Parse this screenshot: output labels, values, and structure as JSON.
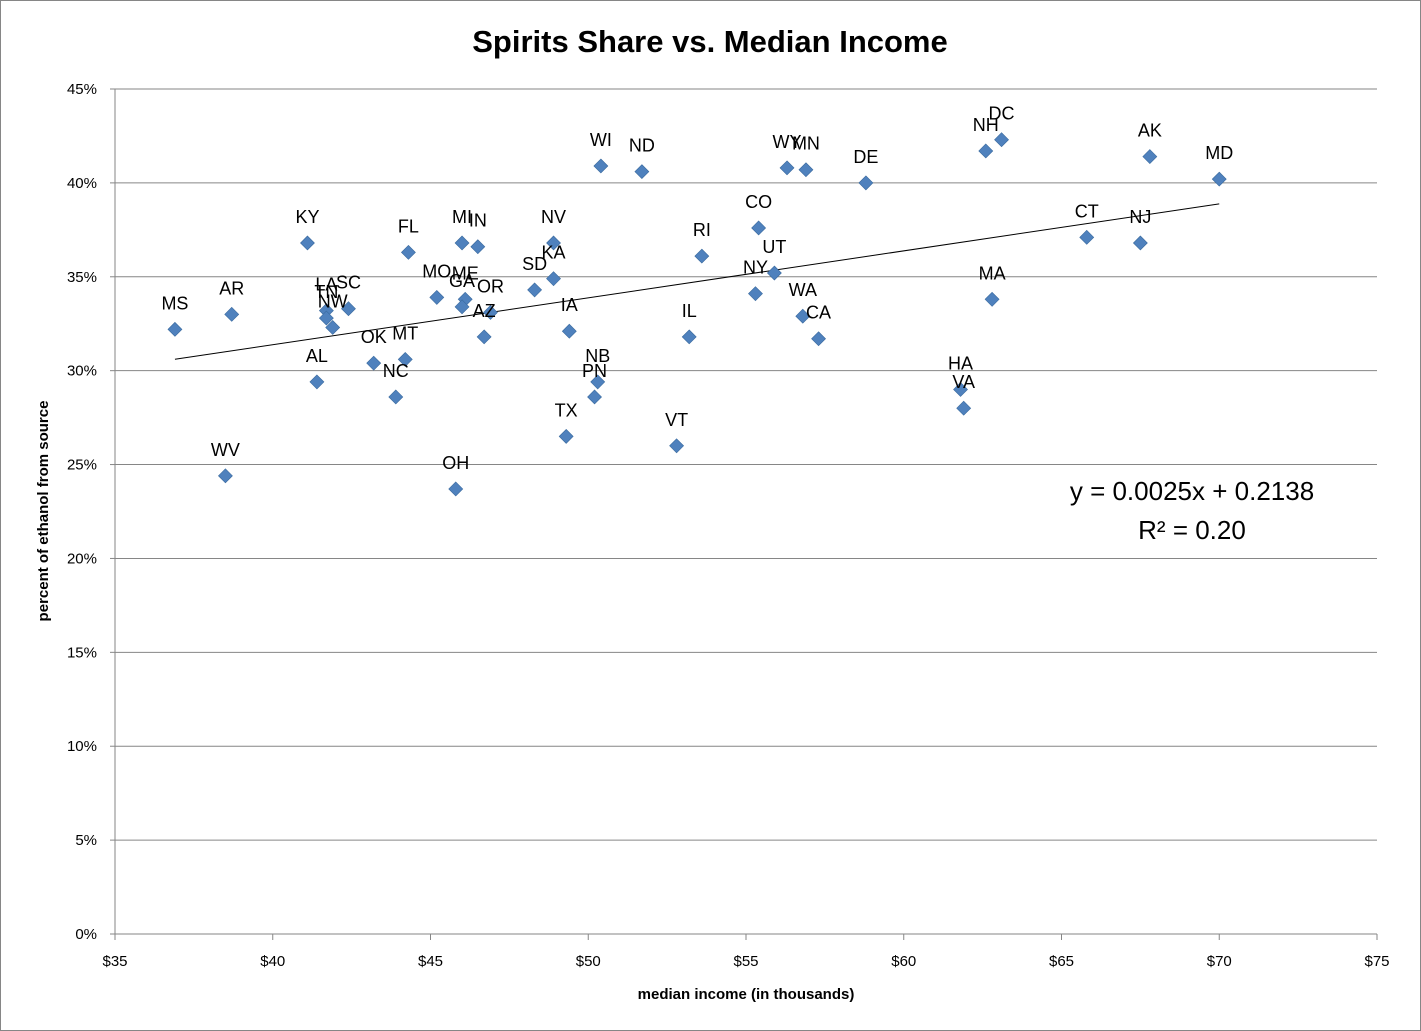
{
  "chart_data": {
    "type": "scatter",
    "title": "Spirits Share vs. Median Income",
    "xlabel": "median income (in thousands)",
    "ylabel": "percent of ethanol from source",
    "xlim": [
      35,
      75
    ],
    "ylim": [
      0,
      0.45
    ],
    "x_ticks": [
      "$35",
      "$40",
      "$45",
      "$50",
      "$55",
      "$60",
      "$65",
      "$70",
      "$75"
    ],
    "y_ticks": [
      "0%",
      "5%",
      "10%",
      "15%",
      "20%",
      "25%",
      "30%",
      "35%",
      "40%",
      "45%"
    ],
    "grid": "horizontal",
    "legend": "none",
    "marker_color": "#4F81BD",
    "points": [
      {
        "label": "MS",
        "x": 36.9,
        "y": 0.322
      },
      {
        "label": "AR",
        "x": 38.7,
        "y": 0.33
      },
      {
        "label": "WV",
        "x": 38.5,
        "y": 0.244
      },
      {
        "label": "KY",
        "x": 41.1,
        "y": 0.368
      },
      {
        "label": "LA",
        "x": 41.7,
        "y": 0.332
      },
      {
        "label": "SC",
        "x": 42.4,
        "y": 0.333
      },
      {
        "label": "TN",
        "x": 41.7,
        "y": 0.328
      },
      {
        "label": "NW",
        "x": 41.9,
        "y": 0.323
      },
      {
        "label": "AL",
        "x": 41.4,
        "y": 0.294
      },
      {
        "label": "FL",
        "x": 44.3,
        "y": 0.363
      },
      {
        "label": "OK",
        "x": 43.2,
        "y": 0.304
      },
      {
        "label": "MT",
        "x": 44.2,
        "y": 0.306
      },
      {
        "label": "NC",
        "x": 43.9,
        "y": 0.286
      },
      {
        "label": "MO",
        "x": 45.2,
        "y": 0.339
      },
      {
        "label": "MI",
        "x": 46.0,
        "y": 0.368
      },
      {
        "label": "IN",
        "x": 46.5,
        "y": 0.366
      },
      {
        "label": "ME",
        "x": 46.1,
        "y": 0.338
      },
      {
        "label": "GA",
        "x": 46.0,
        "y": 0.334
      },
      {
        "label": "OR",
        "x": 46.9,
        "y": 0.331
      },
      {
        "label": "AZ",
        "x": 46.7,
        "y": 0.318
      },
      {
        "label": "OH",
        "x": 45.8,
        "y": 0.237
      },
      {
        "label": "NV",
        "x": 48.9,
        "y": 0.368
      },
      {
        "label": "KA",
        "x": 48.9,
        "y": 0.349
      },
      {
        "label": "SD",
        "x": 48.3,
        "y": 0.343
      },
      {
        "label": "IA",
        "x": 49.4,
        "y": 0.321
      },
      {
        "label": "TX",
        "x": 49.3,
        "y": 0.265
      },
      {
        "label": "WI",
        "x": 50.4,
        "y": 0.409
      },
      {
        "label": "NB",
        "x": 50.3,
        "y": 0.294
      },
      {
        "label": "PN",
        "x": 50.2,
        "y": 0.286
      },
      {
        "label": "ND",
        "x": 51.7,
        "y": 0.406
      },
      {
        "label": "RI",
        "x": 53.6,
        "y": 0.361
      },
      {
        "label": "IL",
        "x": 53.2,
        "y": 0.318
      },
      {
        "label": "VT",
        "x": 52.8,
        "y": 0.26
      },
      {
        "label": "CO",
        "x": 55.4,
        "y": 0.376
      },
      {
        "label": "UT",
        "x": 55.9,
        "y": 0.352
      },
      {
        "label": "NY",
        "x": 55.3,
        "y": 0.341
      },
      {
        "label": "WY",
        "x": 56.3,
        "y": 0.408
      },
      {
        "label": "MN",
        "x": 56.9,
        "y": 0.407
      },
      {
        "label": "WA",
        "x": 56.8,
        "y": 0.329
      },
      {
        "label": "CA",
        "x": 57.3,
        "y": 0.317
      },
      {
        "label": "DE",
        "x": 58.8,
        "y": 0.4
      },
      {
        "label": "HA",
        "x": 61.8,
        "y": 0.29
      },
      {
        "label": "VA",
        "x": 61.9,
        "y": 0.28
      },
      {
        "label": "NH",
        "x": 62.6,
        "y": 0.417
      },
      {
        "label": "DC",
        "x": 63.1,
        "y": 0.423
      },
      {
        "label": "MA",
        "x": 62.8,
        "y": 0.338
      },
      {
        "label": "CT",
        "x": 65.8,
        "y": 0.371
      },
      {
        "label": "NJ",
        "x": 67.5,
        "y": 0.368
      },
      {
        "label": "AK",
        "x": 67.8,
        "y": 0.414
      },
      {
        "label": "MD",
        "x": 70.0,
        "y": 0.402
      }
    ],
    "trendline": {
      "type": "linear",
      "slope": 0.0025,
      "intercept": 0.2138,
      "x_range": [
        36.9,
        70.0
      ],
      "color": "#000000"
    },
    "annotations": {
      "equation": "y = 0.0025x + 0.2138",
      "r_squared": "R² = 0.20"
    }
  }
}
